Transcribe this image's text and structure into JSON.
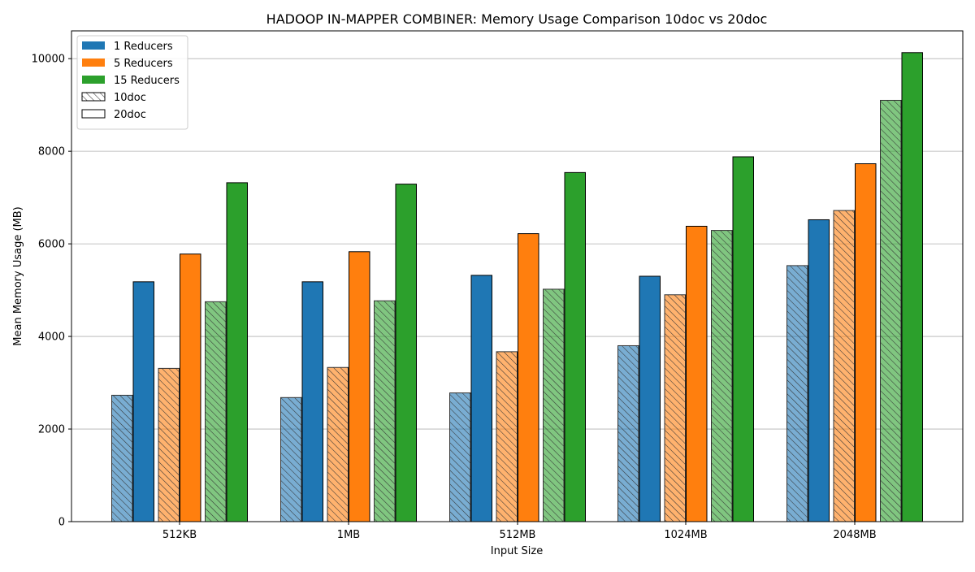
{
  "chart_data": {
    "type": "bar",
    "title": "HADOOP IN-MAPPER COMBINER: Memory Usage Comparison 10doc vs 20doc",
    "xlabel": "Input Size",
    "ylabel": "Mean Memory Usage (MB)",
    "categories": [
      "512KB",
      "1MB",
      "512MB",
      "1024MB",
      "2048MB"
    ],
    "ylim": [
      0,
      10600
    ],
    "yticks": [
      0,
      2000,
      4000,
      6000,
      8000,
      10000
    ],
    "grid": "y",
    "legend_position": "top-left",
    "legend": [
      {
        "label": "1 Reducers",
        "color": "#1f77b4",
        "style": "solid"
      },
      {
        "label": "5 Reducers",
        "color": "#ff7f0e",
        "style": "solid"
      },
      {
        "label": "15 Reducers",
        "color": "#2ca02c",
        "style": "solid"
      },
      {
        "label": "10doc",
        "color": "#ffffff",
        "style": "hatched"
      },
      {
        "label": "20doc",
        "color": "#ffffff",
        "style": "plain"
      }
    ],
    "series": [
      {
        "reducers": "1 Reducers",
        "doc": "10doc",
        "color": "#1f77b4",
        "hatched": true,
        "values": [
          2730,
          2680,
          2780,
          3800,
          5530
        ]
      },
      {
        "reducers": "1 Reducers",
        "doc": "20doc",
        "color": "#1f77b4",
        "hatched": false,
        "values": [
          5180,
          5180,
          5320,
          5300,
          6520
        ]
      },
      {
        "reducers": "5 Reducers",
        "doc": "10doc",
        "color": "#ff7f0e",
        "hatched": true,
        "values": [
          3310,
          3330,
          3670,
          4900,
          6720
        ]
      },
      {
        "reducers": "5 Reducers",
        "doc": "20doc",
        "color": "#ff7f0e",
        "hatched": false,
        "values": [
          5780,
          5830,
          6220,
          6380,
          7730
        ]
      },
      {
        "reducers": "15 Reducers",
        "doc": "10doc",
        "color": "#2ca02c",
        "hatched": true,
        "values": [
          4750,
          4770,
          5020,
          6290,
          9100
        ]
      },
      {
        "reducers": "15 Reducers",
        "doc": "20doc",
        "color": "#2ca02c",
        "hatched": false,
        "values": [
          7320,
          7290,
          7540,
          7880,
          10130
        ]
      }
    ]
  }
}
